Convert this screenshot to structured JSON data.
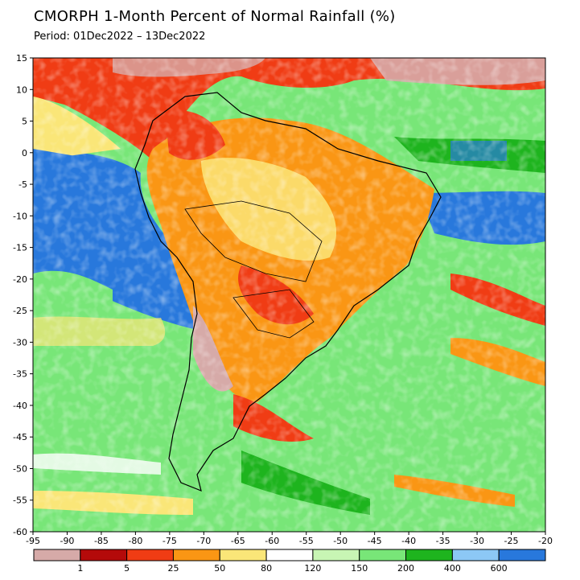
{
  "title": "CMORPH 1-Month Percent of Normal Rainfall (%)",
  "period": "Period: 01Dec2022 – 13Dec2022",
  "map": {
    "lon_range": [
      -95,
      -20
    ],
    "lat_range": [
      -60,
      15
    ],
    "x_ticks": [
      "-95",
      "-90",
      "-85",
      "-80",
      "-75",
      "-70",
      "-65",
      "-60",
      "-55",
      "-50",
      "-45",
      "-40",
      "-35",
      "-30",
      "-25",
      "-20"
    ],
    "y_ticks": [
      "15",
      "10",
      "5",
      "0",
      "-5",
      "-10",
      "-15",
      "-20",
      "-25",
      "-30",
      "-35",
      "-40",
      "-45",
      "-50",
      "-55",
      "-60"
    ]
  },
  "colorbar": {
    "colors": [
      "#d6aaa8",
      "#b40a0a",
      "#f03c14",
      "#fa9614",
      "#fae678",
      "#ffffff",
      "#c8f5b4",
      "#78e678",
      "#1eb41e",
      "#8cc8f5",
      "#2878dc"
    ],
    "labels": [
      "1",
      "5",
      "25",
      "50",
      "80",
      "120",
      "150",
      "200",
      "400",
      "600"
    ]
  }
}
